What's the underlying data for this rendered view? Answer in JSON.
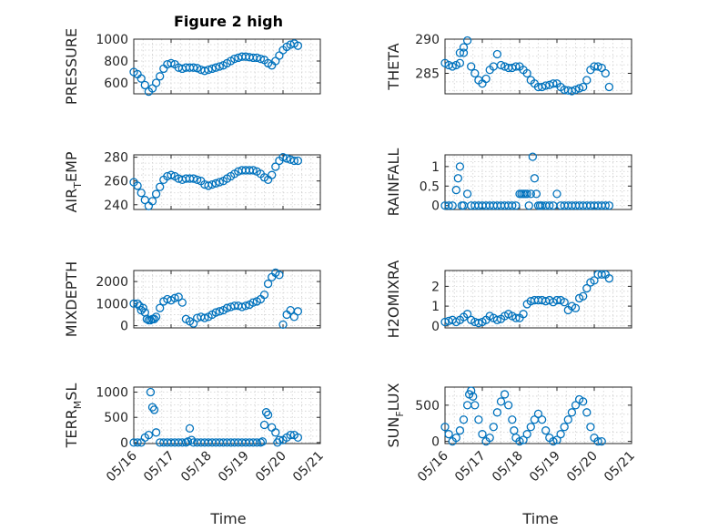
{
  "title": "Figure 2 high",
  "marker_color": "#0072BD",
  "axis_color": "#262626",
  "chart_data": [
    {
      "type": "scatter",
      "ylabel": "PRESSURE",
      "ylim": [
        500,
        1000
      ],
      "yticks": [
        600,
        800,
        1000
      ],
      "xlim": [
        0,
        5
      ],
      "grid": true,
      "x": [
        0.0,
        0.1,
        0.2,
        0.3,
        0.4,
        0.5,
        0.6,
        0.7,
        0.8,
        0.9,
        1.0,
        1.1,
        1.2,
        1.3,
        1.4,
        1.5,
        1.6,
        1.7,
        1.8,
        1.9,
        2.0,
        2.1,
        2.2,
        2.3,
        2.4,
        2.5,
        2.6,
        2.7,
        2.8,
        2.9,
        3.0,
        3.1,
        3.2,
        3.3,
        3.4,
        3.5,
        3.6,
        3.7,
        3.8,
        3.9,
        4.0,
        4.1,
        4.2,
        4.3,
        4.4
      ],
      "y": [
        700,
        680,
        640,
        580,
        520,
        550,
        600,
        660,
        730,
        770,
        780,
        770,
        740,
        730,
        740,
        740,
        740,
        735,
        720,
        710,
        720,
        730,
        740,
        750,
        760,
        780,
        800,
        820,
        830,
        840,
        840,
        835,
        830,
        830,
        820,
        810,
        780,
        760,
        800,
        850,
        900,
        930,
        950,
        960,
        940
      ]
    },
    {
      "type": "scatter",
      "ylabel": "THETA",
      "ylim": [
        282,
        290
      ],
      "yticks": [
        285,
        290
      ],
      "xlim": [
        0,
        5
      ],
      "grid": true,
      "x": [
        0.0,
        0.1,
        0.2,
        0.3,
        0.4,
        0.5,
        0.6,
        0.7,
        0.8,
        0.9,
        1.0,
        1.1,
        1.2,
        1.3,
        1.4,
        1.5,
        1.6,
        1.7,
        1.8,
        1.9,
        2.0,
        2.1,
        2.2,
        2.3,
        2.4,
        2.5,
        2.6,
        2.7,
        2.8,
        2.9,
        3.0,
        3.1,
        3.2,
        3.3,
        3.4,
        3.5,
        3.6,
        3.7,
        3.8,
        3.9,
        4.0,
        4.1,
        4.2,
        4.3,
        4.4,
        0.5,
        0.4
      ],
      "y": [
        286.5,
        286.2,
        286.0,
        286.2,
        286.5,
        288.0,
        289.8,
        286.0,
        285.0,
        284.0,
        283.5,
        284.2,
        285.5,
        286.0,
        287.8,
        286.2,
        286.0,
        285.8,
        285.8,
        286.0,
        286.0,
        285.5,
        285.0,
        284.0,
        283.5,
        283.0,
        283.0,
        283.2,
        283.3,
        283.5,
        283.5,
        283.0,
        282.6,
        282.5,
        282.4,
        282.6,
        282.8,
        283.0,
        284.0,
        285.5,
        286.0,
        286.0,
        285.8,
        285.0,
        283.0,
        288.8,
        288.0
      ]
    },
    {
      "type": "scatter",
      "ylabel": "AIR_TEMP",
      "ylim": [
        236,
        282
      ],
      "yticks": [
        240,
        260,
        280
      ],
      "xlim": [
        0,
        5
      ],
      "grid": true,
      "x": [
        0.0,
        0.1,
        0.2,
        0.3,
        0.4,
        0.5,
        0.6,
        0.7,
        0.8,
        0.9,
        1.0,
        1.1,
        1.2,
        1.3,
        1.4,
        1.5,
        1.6,
        1.7,
        1.8,
        1.9,
        2.0,
        2.1,
        2.2,
        2.3,
        2.4,
        2.5,
        2.6,
        2.7,
        2.8,
        2.9,
        3.0,
        3.1,
        3.2,
        3.3,
        3.4,
        3.5,
        3.6,
        3.7,
        3.8,
        3.9,
        4.0,
        4.1,
        4.2,
        4.3,
        4.4
      ],
      "y": [
        259,
        256,
        250,
        244,
        239,
        243,
        249,
        255,
        261,
        264,
        265,
        264,
        262,
        261,
        262,
        262,
        262,
        261,
        260,
        257,
        256,
        257,
        258,
        259,
        260,
        262,
        264,
        266,
        268,
        269,
        269,
        269,
        269,
        268,
        266,
        263,
        261,
        265,
        272,
        277,
        280,
        279,
        278,
        277,
        277
      ]
    },
    {
      "type": "scatter",
      "ylabel": "RAINFALL",
      "ylim": [
        -0.1,
        1.3
      ],
      "yticks": [
        0,
        0.5,
        1
      ],
      "xlim": [
        0,
        5
      ],
      "grid": true,
      "x": [
        0.0,
        0.1,
        0.2,
        0.3,
        0.35,
        0.4,
        0.45,
        0.5,
        0.6,
        0.7,
        0.8,
        0.9,
        1.0,
        1.1,
        1.2,
        1.3,
        1.4,
        1.5,
        1.6,
        1.7,
        1.8,
        1.9,
        2.0,
        2.05,
        2.1,
        2.15,
        2.2,
        2.25,
        2.3,
        2.35,
        2.4,
        2.45,
        2.5,
        2.55,
        2.6,
        2.7,
        2.8,
        2.9,
        3.0,
        3.1,
        3.2,
        3.3,
        3.4,
        3.5,
        3.6,
        3.7,
        3.8,
        3.9,
        4.0,
        4.1,
        4.2,
        4.3,
        4.4
      ],
      "y": [
        0,
        0,
        0,
        0.4,
        0.7,
        1.0,
        0,
        0,
        0.3,
        0,
        0,
        0,
        0,
        0,
        0,
        0,
        0,
        0,
        0,
        0,
        0,
        0,
        0.3,
        0.3,
        0.3,
        0.3,
        0.3,
        0,
        0.3,
        1.25,
        0.7,
        0.3,
        0,
        0,
        0,
        0,
        0,
        0,
        0.3,
        0,
        0,
        0,
        0,
        0,
        0,
        0,
        0,
        0,
        0,
        0,
        0,
        0,
        0
      ]
    },
    {
      "type": "scatter",
      "ylabel": "MIXDEPTH",
      "ylim": [
        -100,
        2500
      ],
      "yticks": [
        0,
        1000,
        2000
      ],
      "xlim": [
        0,
        5
      ],
      "grid": true,
      "x": [
        0.0,
        0.1,
        0.15,
        0.2,
        0.25,
        0.3,
        0.35,
        0.4,
        0.45,
        0.5,
        0.55,
        0.6,
        0.7,
        0.8,
        0.9,
        1.0,
        1.1,
        1.2,
        1.3,
        1.4,
        1.5,
        1.6,
        1.7,
        1.8,
        1.9,
        2.0,
        2.1,
        2.2,
        2.3,
        2.4,
        2.5,
        2.6,
        2.7,
        2.8,
        2.9,
        3.0,
        3.1,
        3.2,
        3.3,
        3.4,
        3.5,
        3.6,
        3.7,
        3.8,
        3.9,
        4.0,
        4.1,
        4.2,
        4.3,
        4.4
      ],
      "y": [
        1000,
        1000,
        900,
        700,
        800,
        600,
        300,
        250,
        250,
        300,
        300,
        400,
        800,
        1100,
        1200,
        1150,
        1250,
        1300,
        1050,
        300,
        200,
        100,
        350,
        400,
        350,
        400,
        500,
        600,
        650,
        700,
        800,
        850,
        900,
        900,
        850,
        900,
        950,
        1050,
        1100,
        1200,
        1400,
        1900,
        2200,
        2400,
        2300,
        50,
        500,
        700,
        400,
        650
      ]
    },
    {
      "type": "scatter",
      "ylabel": "H2OMIXRA",
      "ylim": [
        -0.1,
        2.8
      ],
      "yticks": [
        0,
        1,
        2
      ],
      "xlim": [
        0,
        5
      ],
      "grid": true,
      "x": [
        0.0,
        0.1,
        0.2,
        0.3,
        0.4,
        0.5,
        0.6,
        0.7,
        0.8,
        0.9,
        1.0,
        1.1,
        1.2,
        1.3,
        1.4,
        1.5,
        1.6,
        1.7,
        1.8,
        1.9,
        2.0,
        2.1,
        2.2,
        2.3,
        2.4,
        2.5,
        2.6,
        2.7,
        2.8,
        2.9,
        3.0,
        3.1,
        3.2,
        3.3,
        3.4,
        3.5,
        3.6,
        3.7,
        3.8,
        3.9,
        4.0,
        4.1,
        4.2,
        4.3,
        4.4
      ],
      "y": [
        0.2,
        0.25,
        0.3,
        0.2,
        0.3,
        0.45,
        0.6,
        0.3,
        0.2,
        0.15,
        0.2,
        0.3,
        0.5,
        0.4,
        0.3,
        0.35,
        0.5,
        0.6,
        0.5,
        0.4,
        0.4,
        0.6,
        1.1,
        1.25,
        1.3,
        1.3,
        1.3,
        1.25,
        1.3,
        1.2,
        1.3,
        1.3,
        1.2,
        0.8,
        1.0,
        0.9,
        1.4,
        1.5,
        1.9,
        2.2,
        2.3,
        2.6,
        2.6,
        2.6,
        2.4
      ]
    },
    {
      "type": "scatter",
      "ylabel": "TERR_MSL",
      "ylim": [
        -20,
        1100
      ],
      "yticks": [
        0,
        500,
        1000
      ],
      "xlim": [
        0,
        5
      ],
      "grid": true,
      "x": [
        0.0,
        0.1,
        0.2,
        0.3,
        0.4,
        0.45,
        0.5,
        0.55,
        0.6,
        0.7,
        0.8,
        0.9,
        1.0,
        1.1,
        1.2,
        1.3,
        1.4,
        1.45,
        1.5,
        1.55,
        1.6,
        1.7,
        1.8,
        1.9,
        2.0,
        2.1,
        2.2,
        2.3,
        2.4,
        2.5,
        2.6,
        2.7,
        2.8,
        2.9,
        3.0,
        3.1,
        3.2,
        3.3,
        3.4,
        3.45,
        3.5,
        3.55,
        3.6,
        3.7,
        3.8,
        3.85,
        3.9,
        4.0,
        4.1,
        4.2,
        4.3,
        4.4
      ],
      "y": [
        0,
        0,
        0,
        100,
        150,
        1000,
        700,
        650,
        200,
        0,
        0,
        0,
        0,
        0,
        0,
        0,
        0,
        20,
        280,
        50,
        0,
        0,
        0,
        0,
        0,
        0,
        0,
        0,
        0,
        0,
        0,
        0,
        0,
        0,
        0,
        0,
        0,
        0,
        0,
        20,
        350,
        600,
        550,
        300,
        200,
        0,
        50,
        50,
        100,
        150,
        150,
        100
      ]
    },
    {
      "type": "scatter",
      "ylabel": "SUN_FLUX",
      "ylim": [
        -30,
        750
      ],
      "yticks": [
        0,
        500
      ],
      "xlim": [
        0,
        5
      ],
      "grid": true,
      "x": [
        0.0,
        0.1,
        0.2,
        0.3,
        0.4,
        0.5,
        0.6,
        0.65,
        0.7,
        0.75,
        0.8,
        0.9,
        1.0,
        1.1,
        1.2,
        1.3,
        1.4,
        1.5,
        1.6,
        1.7,
        1.8,
        1.85,
        1.9,
        2.0,
        2.1,
        2.2,
        2.3,
        2.4,
        2.5,
        2.6,
        2.7,
        2.8,
        2.9,
        3.0,
        3.1,
        3.2,
        3.3,
        3.4,
        3.5,
        3.6,
        3.7,
        3.8,
        3.9,
        4.0,
        4.1,
        4.2
      ],
      "y": [
        200,
        100,
        0,
        50,
        150,
        300,
        500,
        650,
        700,
        620,
        500,
        300,
        100,
        0,
        50,
        200,
        400,
        550,
        650,
        500,
        300,
        150,
        50,
        0,
        20,
        100,
        200,
        300,
        380,
        300,
        150,
        50,
        0,
        20,
        100,
        200,
        300,
        400,
        500,
        580,
        550,
        400,
        200,
        50,
        0,
        0
      ]
    }
  ],
  "x_axis": {
    "ticks": [
      0,
      1,
      2,
      3,
      4,
      5
    ],
    "ticklabels": [
      "05/16",
      "05/17",
      "05/18",
      "05/19",
      "05/20",
      "05/21"
    ],
    "label": "Time"
  }
}
